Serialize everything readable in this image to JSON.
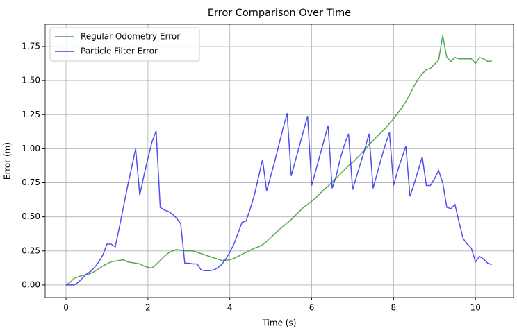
{
  "chart_data": {
    "type": "line",
    "title": "Error Comparison Over Time",
    "xlabel": "Time (s)",
    "ylabel": "Error (m)",
    "x": [
      0,
      0.1,
      0.2,
      0.3,
      0.4,
      0.5,
      0.6,
      0.7,
      0.8,
      0.9,
      1.0,
      1.1,
      1.2,
      1.3,
      1.4,
      1.5,
      1.6,
      1.7,
      1.8,
      1.9,
      2.0,
      2.1,
      2.2,
      2.3,
      2.4,
      2.5,
      2.6,
      2.7,
      2.8,
      2.9,
      3.0,
      3.1,
      3.2,
      3.3,
      3.4,
      3.5,
      3.6,
      3.7,
      3.8,
      3.9,
      4.0,
      4.1,
      4.2,
      4.3,
      4.4,
      4.5,
      4.6,
      4.7,
      4.8,
      4.9,
      5.0,
      5.1,
      5.2,
      5.3,
      5.4,
      5.5,
      5.6,
      5.7,
      5.8,
      5.9,
      6.0,
      6.1,
      6.2,
      6.3,
      6.4,
      6.5,
      6.6,
      6.7,
      6.8,
      6.9,
      7.0,
      7.1,
      7.2,
      7.3,
      7.4,
      7.5,
      7.6,
      7.7,
      7.8,
      7.9,
      8.0,
      8.1,
      8.2,
      8.3,
      8.4,
      8.5,
      8.6,
      8.7,
      8.8,
      8.9,
      9.0,
      9.1,
      9.2,
      9.3,
      9.4,
      9.5,
      9.6,
      9.7,
      9.8,
      9.9,
      10.0,
      10.1,
      10.2,
      10.3,
      10.4
    ],
    "series": [
      {
        "name": "Regular Odometry Error",
        "color": "#3fa03f",
        "values": [
          0,
          0.02,
          0.05,
          0.06,
          0.07,
          0.075,
          0.085,
          0.1,
          0.12,
          0.14,
          0.155,
          0.17,
          0.175,
          0.18,
          0.185,
          0.17,
          0.165,
          0.16,
          0.155,
          0.14,
          0.13,
          0.125,
          0.15,
          0.18,
          0.21,
          0.235,
          0.25,
          0.26,
          0.255,
          0.25,
          0.25,
          0.25,
          0.24,
          0.23,
          0.22,
          0.21,
          0.2,
          0.19,
          0.18,
          0.18,
          0.185,
          0.195,
          0.21,
          0.225,
          0.24,
          0.255,
          0.27,
          0.28,
          0.295,
          0.32,
          0.35,
          0.375,
          0.405,
          0.43,
          0.455,
          0.48,
          0.51,
          0.54,
          0.57,
          0.59,
          0.615,
          0.64,
          0.67,
          0.7,
          0.725,
          0.755,
          0.785,
          0.815,
          0.845,
          0.875,
          0.9,
          0.93,
          0.96,
          0.995,
          1.03,
          1.06,
          1.09,
          1.12,
          1.15,
          1.185,
          1.22,
          1.26,
          1.3,
          1.345,
          1.4,
          1.46,
          1.51,
          1.55,
          1.58,
          1.59,
          1.62,
          1.65,
          1.83,
          1.67,
          1.64,
          1.67,
          1.66,
          1.66,
          1.66,
          1.66,
          1.625,
          1.67,
          1.66,
          1.64,
          1.645
        ]
      },
      {
        "name": "Particle Filter Error",
        "color": "#3c3cf0",
        "values": [
          0,
          0,
          0,
          0.02,
          0.05,
          0.08,
          0.1,
          0.13,
          0.17,
          0.22,
          0.3,
          0.3,
          0.28,
          0.42,
          0.57,
          0.72,
          0.86,
          1.0,
          0.66,
          0.8,
          0.93,
          1.05,
          1.13,
          0.57,
          0.55,
          0.54,
          0.52,
          0.49,
          0.45,
          0.16,
          0.16,
          0.155,
          0.155,
          0.11,
          0.105,
          0.105,
          0.11,
          0.125,
          0.15,
          0.19,
          0.24,
          0.3,
          0.38,
          0.46,
          0.47,
          0.56,
          0.66,
          0.79,
          0.92,
          0.69,
          0.8,
          0.91,
          1.03,
          1.15,
          1.26,
          0.8,
          0.91,
          1.02,
          1.13,
          1.24,
          0.73,
          0.84,
          0.95,
          1.06,
          1.17,
          0.71,
          0.8,
          0.93,
          1.03,
          1.11,
          0.7,
          0.8,
          0.9,
          1.0,
          1.11,
          0.71,
          0.82,
          0.93,
          1.03,
          1.12,
          0.73,
          0.84,
          0.93,
          1.02,
          0.65,
          0.74,
          0.84,
          0.94,
          0.73,
          0.73,
          0.78,
          0.84,
          0.75,
          0.57,
          0.56,
          0.59,
          0.46,
          0.34,
          0.3,
          0.27,
          0.17,
          0.21,
          0.19,
          0.16,
          0.15
        ]
      }
    ],
    "xlim": [
      -0.51,
      10.93
    ],
    "ylim": [
      -0.092,
      1.913
    ],
    "xticks": [
      0,
      2,
      4,
      6,
      8,
      10
    ],
    "yticks": [
      {
        "value": 0,
        "label": "0.00"
      },
      {
        "value": 0.25,
        "label": "0.25"
      },
      {
        "value": 0.5,
        "label": "0.50"
      },
      {
        "value": 0.75,
        "label": "0.75"
      },
      {
        "value": 1,
        "label": "1.00"
      },
      {
        "value": 1.25,
        "label": "1.25"
      },
      {
        "value": 1.5,
        "label": "1.50"
      },
      {
        "value": 1.75,
        "label": "1.75"
      }
    ],
    "grid": true,
    "legend": "upper-left"
  }
}
